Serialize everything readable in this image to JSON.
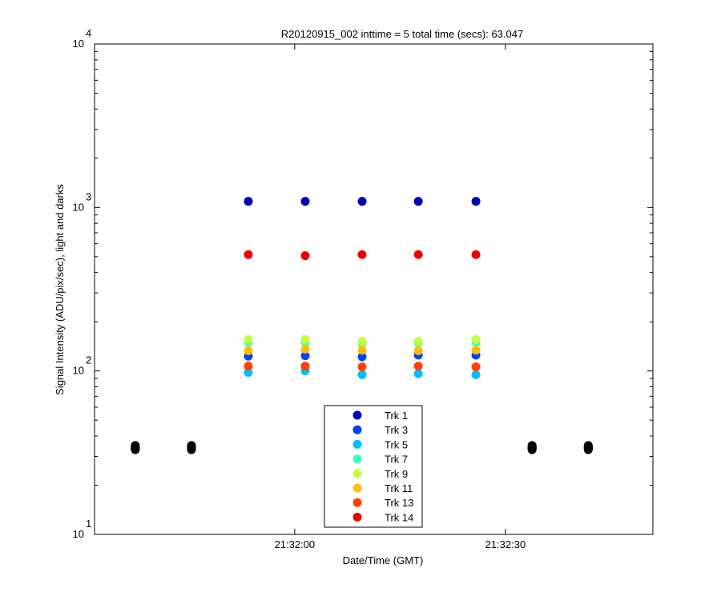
{
  "chart_data": {
    "type": "scatter",
    "title": "R20120915_002 inttime = 5 total time (secs): 63.047",
    "x_label": "Date/Time (GMT)",
    "y_label": "Signal Intensity (ADU/pix/sec), light and darks",
    "x": [
      77513.4,
      77521.5,
      77529.6,
      77537.6,
      77545.8
    ],
    "dark_x": [
      77497.3,
      77505.3,
      77553.8,
      77561.8
    ],
    "dark_color": "#000000",
    "xlim": [
      77491.5,
      77571
    ],
    "xticks": [
      {
        "value": 77520,
        "label": "21:32:00"
      },
      {
        "value": 77550,
        "label": "21:32:30"
      }
    ],
    "ylim": [
      10,
      10000
    ],
    "log_y": true,
    "yticks": [
      {
        "value": 10,
        "label": "10",
        "exponent": "1"
      },
      {
        "value": 100,
        "label": "10",
        "exponent": "2"
      },
      {
        "value": 1000,
        "label": "10",
        "exponent": "3"
      },
      {
        "value": 10000,
        "label": "10",
        "exponent": "4"
      }
    ],
    "legend": "bottom",
    "series": [
      {
        "name": "Trk 1",
        "color": "#0000b4",
        "values": [
          1090,
          1090,
          1090,
          1090,
          1090
        ],
        "dark_values": [
          35,
          35,
          35,
          35
        ]
      },
      {
        "name": "Trk 3",
        "color": "#0040ff",
        "values": [
          123,
          124,
          122,
          125,
          125
        ],
        "dark_values": [
          34.5,
          34.5,
          34.5,
          34.5
        ]
      },
      {
        "name": "Trk 5",
        "color": "#00bfff",
        "values": [
          98,
          100,
          95,
          96,
          95
        ],
        "dark_values": [
          34,
          34,
          34,
          34
        ]
      },
      {
        "name": "Trk 7",
        "color": "#40ffbf",
        "values": [
          150,
          150,
          148,
          148,
          150
        ],
        "dark_values": [
          34,
          34,
          34,
          34
        ]
      },
      {
        "name": "Trk 9",
        "color": "#bfff40",
        "values": [
          156,
          156,
          152,
          152,
          156
        ],
        "dark_values": [
          33.5,
          33.5,
          33.5,
          33.5
        ]
      },
      {
        "name": "Trk 11",
        "color": "#ffbf00",
        "values": [
          133,
          136,
          134,
          133,
          134
        ],
        "dark_values": [
          34,
          34,
          34,
          34
        ]
      },
      {
        "name": "Trk 13",
        "color": "#ff4000",
        "values": [
          107,
          107,
          106,
          107,
          106
        ],
        "dark_values": [
          33,
          33,
          33,
          33
        ]
      },
      {
        "name": "Trk 14",
        "color": "#f00000",
        "values": [
          515,
          507,
          515,
          515,
          515
        ],
        "dark_values": [
          33.5,
          33.5,
          33.5,
          33.5
        ]
      }
    ]
  }
}
